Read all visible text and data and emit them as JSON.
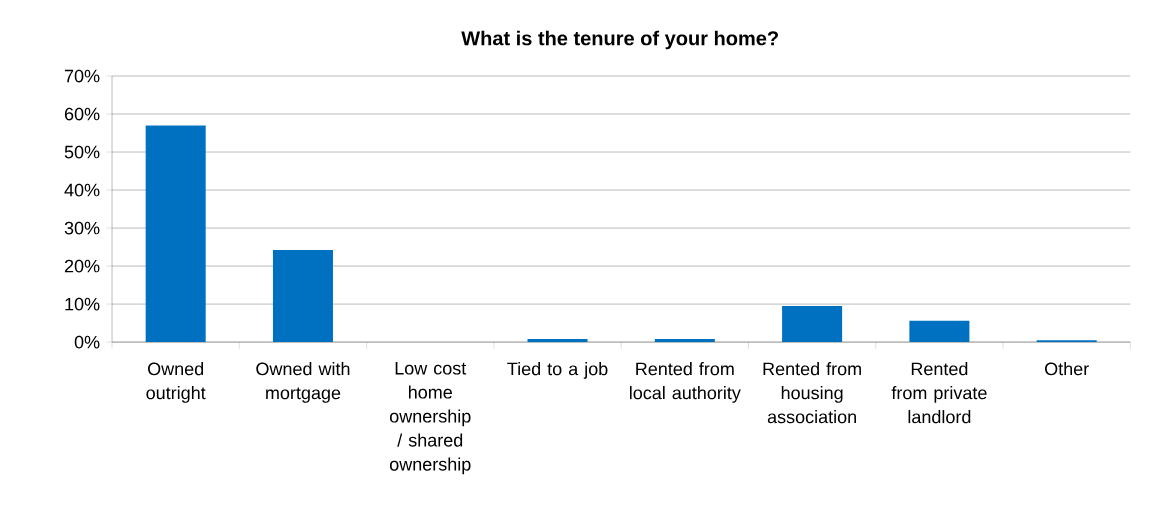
{
  "chart_data": {
    "type": "bar",
    "title": "What is the tenure of your home?",
    "categories": [
      "Owned outright",
      "Owned with mortgage",
      "Low cost home ownership / shared ownership",
      "Tied to a job",
      "Rented from local authority",
      "Rented from housing association",
      "Rented from private landlord",
      "Other"
    ],
    "values": [
      57,
      24.2,
      0,
      0.8,
      0.8,
      9.5,
      5.6,
      0.5
    ],
    "color": "#0070c0",
    "ylim": [
      0,
      70
    ],
    "yticks": [
      {
        "value": 0,
        "label": "0%"
      },
      {
        "value": 10,
        "label": "10%"
      },
      {
        "value": 20,
        "label": "20%"
      },
      {
        "value": 30,
        "label": "30%"
      },
      {
        "value": 40,
        "label": "40%"
      },
      {
        "value": 50,
        "label": "50%"
      },
      {
        "value": 60,
        "label": "60%"
      },
      {
        "value": 70,
        "label": "70%"
      }
    ],
    "grid": "y"
  }
}
